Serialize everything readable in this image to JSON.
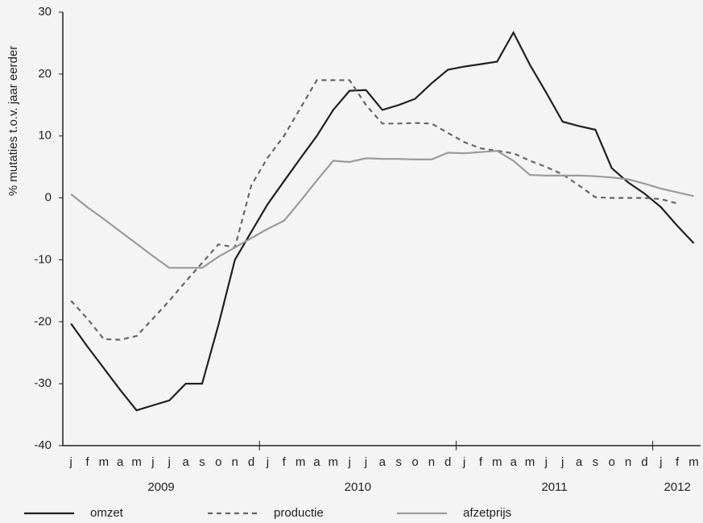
{
  "chart_data": {
    "type": "line",
    "y_label": "% mutaties t.o.v. jaar eerder",
    "categories": [
      "j",
      "f",
      "m",
      "a",
      "m",
      "j",
      "j",
      "a",
      "s",
      "o",
      "n",
      "d",
      "j",
      "f",
      "m",
      "a",
      "m",
      "j",
      "j",
      "a",
      "s",
      "o",
      "n",
      "d",
      "j",
      "f",
      "m",
      "a",
      "m",
      "j",
      "j",
      "a",
      "s",
      "o",
      "n",
      "d",
      "j",
      "f",
      "m"
    ],
    "year_labels": [
      "2009",
      "2010",
      "2011",
      "2012"
    ],
    "ylim": [
      -40,
      30
    ],
    "yticks": [
      -40,
      -30,
      -20,
      -10,
      0,
      10,
      20,
      30
    ],
    "series": [
      {
        "name": "omzet",
        "color": "#231f20",
        "dash": "none",
        "values": [
          -20.3,
          -24,
          -27.5,
          -31,
          -34.3,
          -33.5,
          -32.7,
          -30,
          -30,
          -20.5,
          -10,
          -5.5,
          -1,
          2.7,
          6.4,
          10,
          14.2,
          17.3,
          17.4,
          14.2,
          15,
          16,
          18.5,
          20.7,
          21.2,
          21.6,
          22,
          26.7,
          21.5,
          17,
          12.3,
          11.6,
          11,
          4.8,
          2.5,
          0.7,
          -1.5,
          -4.5,
          -7.3
        ]
      },
      {
        "name": "productie",
        "color": "#666666",
        "dash": "6,5",
        "values": [
          -16.6,
          -19.5,
          -22.8,
          -22.9,
          -22.3,
          -19.5,
          -16.6,
          -13.5,
          -10.5,
          -7.5,
          -8,
          2,
          6.5,
          10,
          14.5,
          19,
          19,
          19,
          15,
          12,
          12,
          12.1,
          12,
          10.5,
          9,
          8,
          7.6,
          7.2,
          6,
          5,
          3.8,
          2,
          0.1,
          0,
          0,
          0,
          -0.2,
          -0.9,
          null
        ]
      },
      {
        "name": "afzetprijs",
        "color": "#9b9b9b",
        "dash": "none",
        "values": [
          0.6,
          -1.5,
          -3.4,
          -5.4,
          -7.4,
          -9.4,
          -11.3,
          -11.3,
          -11.3,
          -9.5,
          -8,
          -6.5,
          -5,
          -3.7,
          -0.5,
          2.8,
          6,
          5.8,
          6.4,
          6.3,
          6.3,
          6.2,
          6.2,
          7.3,
          7.2,
          7.4,
          7.6,
          6,
          3.7,
          3.6,
          3.6,
          3.6,
          3.5,
          3.3,
          3,
          2.3,
          1.5,
          0.9,
          0.3
        ]
      }
    ]
  }
}
